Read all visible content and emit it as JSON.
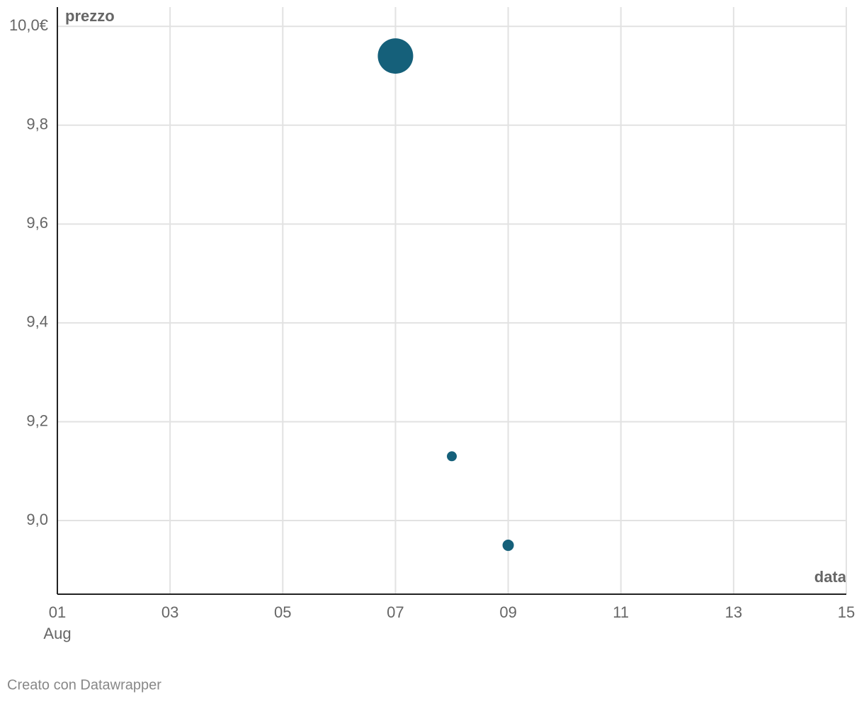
{
  "chart_data": {
    "type": "scatter",
    "y_label": "prezzo",
    "x_label": "data",
    "x": [
      7,
      8,
      9
    ],
    "values": [
      9.94,
      9.13,
      8.95
    ],
    "sizes": [
      625,
      49,
      64
    ],
    "x_month": "Aug",
    "color": "#15607a",
    "xlim": [
      1,
      15
    ],
    "xticks": [
      {
        "value": 1,
        "label": "01"
      },
      {
        "value": 3,
        "label": "03"
      },
      {
        "value": 5,
        "label": "05"
      },
      {
        "value": 7,
        "label": "07"
      },
      {
        "value": 9,
        "label": "09"
      },
      {
        "value": 11,
        "label": "11"
      },
      {
        "value": 13,
        "label": "13"
      },
      15
    ],
    "ylim": [
      8.851,
      10.039
    ],
    "yticks": [
      {
        "value": 9,
        "label": "9,0"
      },
      {
        "value": 9.2,
        "label": "9,2"
      },
      {
        "value": 9.4,
        "label": "9,4"
      },
      {
        "value": 9.6,
        "label": "9,6"
      },
      {
        "value": 9.8,
        "label": "9,8"
      },
      {
        "value": 10,
        "label": "10,0€"
      }
    ],
    "grid": true,
    "footer": "Creato con Datawrapper"
  }
}
